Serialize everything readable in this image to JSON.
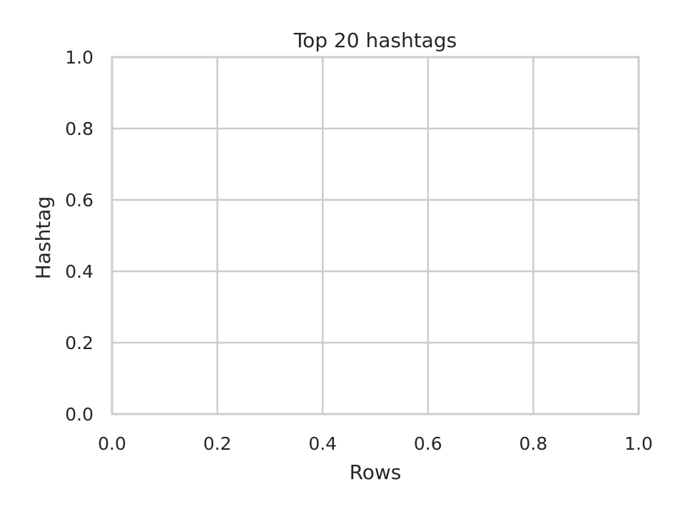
{
  "chart_data": {
    "type": "bar",
    "title": "Top 20 hashtags",
    "xlabel": "Rows",
    "ylabel": "Hashtag",
    "xlim": [
      0.0,
      1.0
    ],
    "ylim": [
      0.0,
      1.0
    ],
    "x_ticks": [
      "0.0",
      "0.2",
      "0.4",
      "0.6",
      "0.8",
      "1.0"
    ],
    "y_ticks": [
      "0.0",
      "0.2",
      "0.4",
      "0.6",
      "0.8",
      "1.0"
    ],
    "categories": [],
    "values": [],
    "grid": true,
    "colors": {
      "grid": "#cccccc",
      "frame": "#cccccc",
      "text": "#262626",
      "background": "#ffffff"
    }
  }
}
